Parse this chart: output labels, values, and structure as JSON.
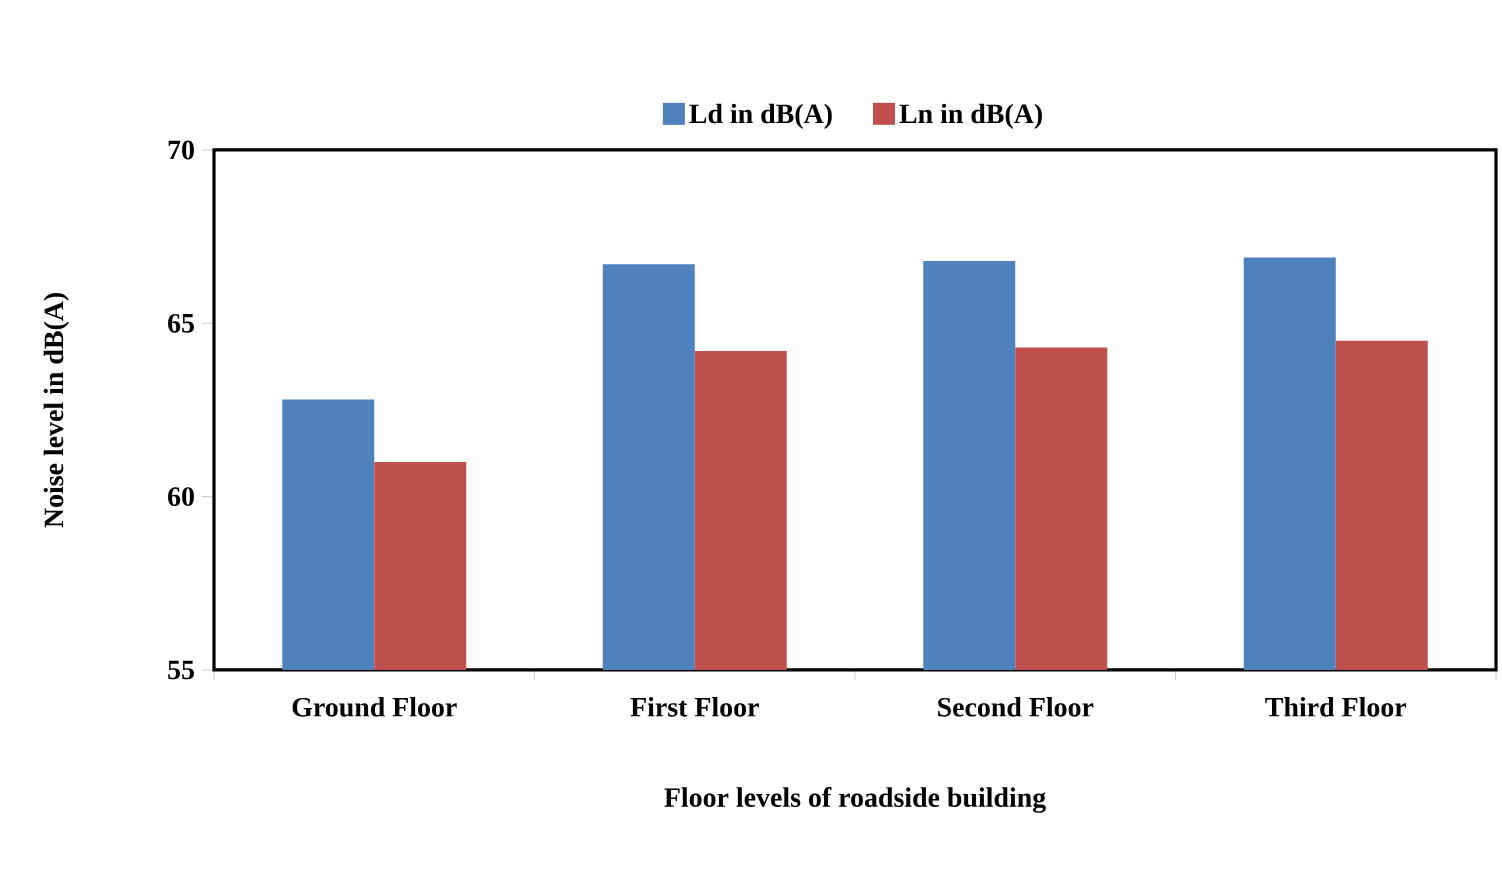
{
  "chart_data": {
    "type": "bar",
    "xlabel": "Floor levels of roadside building",
    "ylabel": "Noise level in dB(A)",
    "categories": [
      "Ground Floor",
      "First Floor",
      "Second Floor",
      "Third Floor"
    ],
    "series": [
      {
        "name": "Ld in dB(A)",
        "color": "#4f81bd",
        "values": [
          62.8,
          66.7,
          66.8,
          66.9
        ]
      },
      {
        "name": "Ln in dB(A)",
        "color": "#c0504d",
        "values": [
          61.0,
          64.2,
          64.3,
          64.5
        ]
      }
    ],
    "ylim": [
      55,
      70
    ],
    "yticks": [
      55,
      60,
      65,
      70
    ],
    "grid": false,
    "legend": "top"
  }
}
